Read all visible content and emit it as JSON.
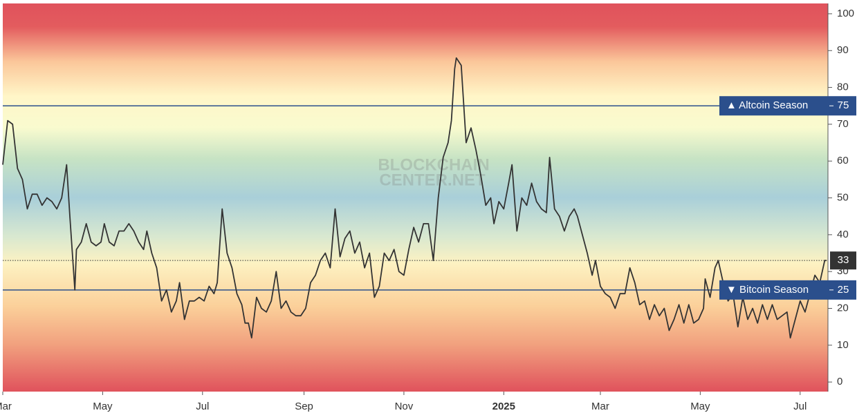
{
  "chart_data": {
    "type": "line",
    "watermark": [
      "BLOCKCHAIN",
      "CENTER.NET"
    ],
    "x": [
      0,
      3,
      6,
      9,
      12,
      15,
      18,
      21,
      24,
      27,
      30,
      33,
      36,
      39,
      41,
      44,
      45,
      48,
      51,
      54,
      57,
      60,
      62,
      65,
      68,
      71,
      74,
      77,
      80,
      83,
      86,
      88,
      91,
      94,
      97,
      100,
      103,
      106,
      108,
      111,
      114,
      117,
      120,
      123,
      126,
      129,
      131,
      134,
      137,
      140,
      143,
      146,
      148,
      150,
      152,
      155,
      158,
      161,
      164,
      167,
      170,
      173,
      176,
      179,
      182,
      185,
      188,
      191,
      194,
      197,
      200,
      203,
      206,
      209,
      212,
      215,
      218,
      221,
      224,
      227,
      230,
      233,
      236,
      239,
      242,
      245,
      248,
      251,
      254,
      257,
      260,
      263,
      266,
      269,
      272,
      274,
      276,
      277,
      280,
      283,
      286,
      289,
      292,
      295,
      298,
      300,
      303,
      306,
      309,
      311,
      314,
      317,
      320,
      323,
      326,
      329,
      332,
      334,
      337,
      340,
      343,
      346,
      349,
      351,
      354,
      357,
      360,
      362,
      365,
      368,
      371,
      374,
      377,
      380,
      383,
      386,
      389,
      392,
      395,
      398,
      401,
      404,
      407,
      410,
      413,
      416,
      419,
      422,
      425,
      428,
      429,
      432,
      435,
      437,
      440,
      443,
      446,
      449,
      452,
      455,
      458,
      461,
      464,
      467,
      470,
      473,
      476,
      479,
      481,
      484,
      487,
      490,
      493,
      496,
      499,
      502,
      503
    ],
    "values": [
      59,
      71,
      70,
      58,
      55,
      47,
      51,
      51,
      48,
      50,
      49,
      47,
      50,
      59,
      45,
      25,
      36,
      38,
      43,
      38,
      37,
      38,
      43,
      38,
      37,
      41,
      41,
      43,
      41,
      38,
      36,
      41,
      35,
      31,
      22,
      25,
      19,
      22,
      27,
      17,
      22,
      22,
      23,
      22,
      26,
      24,
      27,
      47,
      35,
      31,
      24,
      21,
      16,
      16,
      12,
      23,
      20,
      19,
      22,
      30,
      20,
      22,
      19,
      18,
      18,
      20,
      27,
      29,
      33,
      35,
      31,
      47,
      34,
      39,
      41,
      35,
      38,
      31,
      35,
      23,
      26,
      35,
      33,
      36,
      30,
      29,
      36,
      42,
      38,
      43,
      43,
      33,
      50,
      61,
      65,
      71,
      85,
      88,
      86,
      65,
      69,
      63,
      56,
      48,
      50,
      43,
      49,
      47,
      54,
      59,
      41,
      50,
      48,
      54,
      49,
      47,
      46,
      61,
      47,
      45,
      41,
      45,
      47,
      45,
      40,
      35,
      29,
      33,
      26,
      24,
      23,
      20,
      24,
      24,
      31,
      27,
      21,
      22,
      17,
      21,
      18,
      20,
      14,
      17,
      21,
      16,
      21,
      16,
      17,
      20,
      28,
      23,
      31,
      33,
      27,
      22,
      24,
      15,
      23,
      17,
      20,
      16,
      21,
      17,
      21,
      17,
      18,
      19,
      12,
      17,
      22,
      19,
      24,
      29,
      27,
      33,
      33
    ],
    "color": "#333333",
    "xlim": [
      0,
      504
    ],
    "xticks": [
      {
        "value": 0,
        "label": "Mar"
      },
      {
        "value": 61,
        "label": "May"
      },
      {
        "value": 122,
        "label": "Jul"
      },
      {
        "value": 184,
        "label": "Sep"
      },
      {
        "value": 245,
        "label": "Nov"
      },
      {
        "value": 306,
        "label": "2025"
      },
      {
        "value": 365,
        "label": "Mar"
      },
      {
        "value": 426,
        "label": "May"
      },
      {
        "value": 487,
        "label": "Jul"
      }
    ],
    "ylim": [
      -2.6,
      102.8
    ],
    "yticks": [
      0,
      10,
      20,
      30,
      40,
      50,
      60,
      70,
      80,
      90,
      100
    ],
    "reference_lines": [
      {
        "label": "▲ Altcoin Season",
        "value": 75,
        "color": "#2b4f8c"
      },
      {
        "label": "▼ Bitcoin Season",
        "value": 25,
        "color": "#2b4f8c"
      }
    ]
  }
}
